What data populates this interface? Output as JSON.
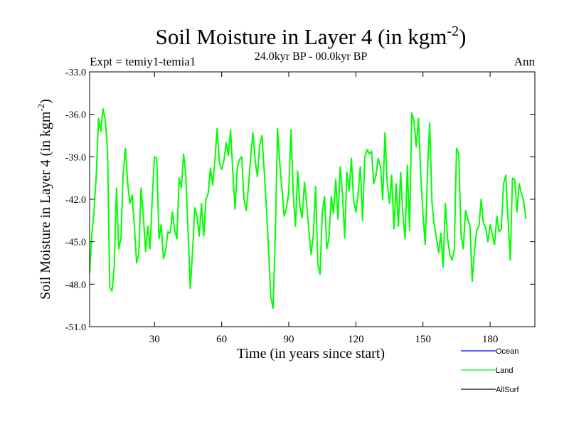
{
  "chart_data": {
    "type": "line",
    "title_main": "Soil Moisture in Layer 4 (in kgm",
    "title_sup": "-2",
    "title_close": ")",
    "experiment_label": "Expt = temiy1-temia1",
    "period_label": "24.0kyr BP - 00.0kyr BP",
    "season_label": "Ann",
    "xlabel": "Time (in years since start)",
    "ylabel_main": "Soil Moisture in Layer 4 (in kgm",
    "ylabel_sup": "-2",
    "ylabel_close": ")",
    "xlim": [
      1,
      200
    ],
    "ylim": [
      -51.0,
      -33.0
    ],
    "x_ticks": [
      30,
      60,
      90,
      120,
      150,
      180
    ],
    "x_tick_labels": [
      "30",
      "60",
      "90",
      "120",
      "150",
      "180"
    ],
    "y_ticks": [
      -51.0,
      -48.0,
      -45.0,
      -42.0,
      -39.0,
      -36.0,
      -33.0
    ],
    "y_tick_labels": [
      "-51.0",
      "-48.0",
      "-45.0",
      "-42.0",
      "-39.0",
      "-36.0",
      "-33.0"
    ],
    "legend": [
      {
        "label": "Ocean",
        "color": "#0000ff"
      },
      {
        "label": "Land",
        "color": "#00ff00"
      },
      {
        "label": "AllSurf",
        "color": "#000000"
      }
    ],
    "series": [
      {
        "name": "Land",
        "color": "#00ff00",
        "x_start": 1,
        "values": [
          -47.2,
          -44.5,
          -42.8,
          -40.2,
          -36.3,
          -37.2,
          -35.6,
          -36.4,
          -38.5,
          -48.2,
          -48.5,
          -46.8,
          -41.2,
          -45.5,
          -44.8,
          -40.2,
          -38.4,
          -40.8,
          -42.3,
          -41.7,
          -43.9,
          -46.5,
          -45.8,
          -41.2,
          -43.1,
          -45.7,
          -43.9,
          -45.5,
          -41.9,
          -39.0,
          -39.1,
          -44.8,
          -43.8,
          -46.2,
          -45.6,
          -44.3,
          -44.4,
          -42.9,
          -44.2,
          -44.8,
          -40.5,
          -41.2,
          -38.8,
          -40.3,
          -44.3,
          -48.3,
          -45.7,
          -42.6,
          -43.2,
          -44.6,
          -42.3,
          -44.6,
          -42.0,
          -41.6,
          -39.8,
          -41.0,
          -39.2,
          -37.0,
          -39.4,
          -39.9,
          -39.3,
          -38.0,
          -38.9,
          -37.1,
          -40.1,
          -42.7,
          -39.8,
          -39.2,
          -39.0,
          -42.0,
          -42.8,
          -41.1,
          -39.0,
          -37.3,
          -39.3,
          -40.4,
          -38.2,
          -37.5,
          -39.9,
          -42.6,
          -45.6,
          -48.9,
          -49.7,
          -44.5,
          -37.0,
          -39.5,
          -41.3,
          -43.2,
          -42.6,
          -41.5,
          -37.1,
          -41.6,
          -43.9,
          -40.0,
          -42.5,
          -43.3,
          -40.8,
          -42.3,
          -44.2,
          -45.9,
          -44.5,
          -41.1,
          -46.6,
          -47.3,
          -42.9,
          -41.8,
          -45.5,
          -44.7,
          -41.8,
          -43.0,
          -40.6,
          -43.4,
          -39.7,
          -41.6,
          -44.7,
          -40.1,
          -41.4,
          -39.1,
          -42.1,
          -42.9,
          -41.6,
          -39.7,
          -43.5,
          -39.0,
          -38.5,
          -38.8,
          -38.6,
          -40.9,
          -40.3,
          -39.1,
          -39.7,
          -42.0,
          -37.3,
          -40.8,
          -42.3,
          -40.3,
          -44.1,
          -40.9,
          -43.9,
          -40.1,
          -43.1,
          -44.8,
          -39.6,
          -44.2,
          -35.9,
          -36.5,
          -38.3,
          -36.3,
          -40.3,
          -43.1,
          -45.2,
          -40.1,
          -36.6,
          -42.2,
          -43.8,
          -44.7,
          -45.8,
          -44.4,
          -46.8,
          -42.3,
          -44.8,
          -45.9,
          -46.3,
          -45.6,
          -38.4,
          -38.8,
          -44.5,
          -45.5,
          -42.8,
          -43.4,
          -43.9,
          -47.8,
          -45.6,
          -44.2,
          -43.9,
          -42.0,
          -43.7,
          -44.0,
          -45.0,
          -43.8,
          -44.5,
          -45.2,
          -43.2,
          -44.3,
          -44.1,
          -40.9,
          -40.3,
          -43.4,
          -46.3,
          -40.5,
          -40.6,
          -42.9,
          -40.9,
          -41.6,
          -42.1,
          -43.4
        ]
      }
    ]
  }
}
